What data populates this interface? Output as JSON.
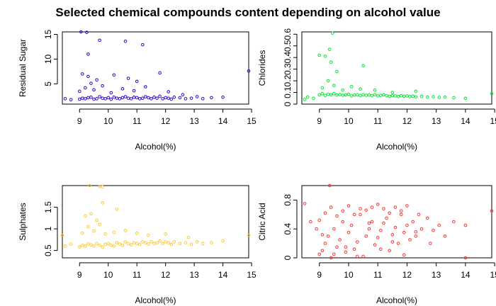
{
  "title": "Selected chemical compounds content depending on alcohol value",
  "chart_data": [
    {
      "type": "scatter",
      "color": "#3300CC",
      "xlabel": "Alcohol(%)",
      "ylabel": "Residual Sugar",
      "xlim": [
        8.4,
        14.9
      ],
      "ylim": [
        0.9,
        15.5
      ],
      "xticks": [
        9,
        10,
        11,
        12,
        13,
        14,
        15
      ],
      "yticks": [
        5,
        10,
        15
      ],
      "x": [
        9.0,
        9.1,
        9.2,
        9.3,
        9.4,
        9.5,
        9.6,
        9.7,
        9.8,
        9.9,
        10.0,
        10.1,
        10.2,
        10.3,
        10.4,
        10.5,
        10.6,
        10.7,
        10.8,
        10.9,
        11.0,
        11.1,
        11.2,
        11.3,
        11.4,
        11.5,
        11.6,
        11.7,
        11.8,
        11.9,
        12.0,
        12.1,
        12.2,
        12.3,
        12.5,
        12.7,
        12.9,
        13.1,
        13.3,
        13.6,
        14.0,
        8.5,
        8.7,
        9.0,
        9.2,
        9.4,
        9.5,
        9.8,
        10.1,
        10.5,
        10.9,
        11.3,
        12.1,
        12.6,
        9.1,
        9.3,
        9.6,
        10.2,
        10.7,
        11.0,
        11.8,
        9.05,
        9.25,
        9.7,
        10.6,
        11.2,
        9.3,
        14.9
      ],
      "y": [
        1.9,
        2.1,
        2.0,
        2.2,
        2.3,
        1.9,
        2.0,
        2.4,
        2.1,
        2.0,
        2.2,
        1.9,
        2.3,
        2.1,
        2.0,
        2.2,
        2.4,
        2.1,
        2.0,
        2.3,
        2.2,
        2.0,
        2.1,
        2.4,
        2.2,
        2.0,
        2.3,
        2.1,
        2.5,
        2.0,
        2.2,
        2.1,
        1.9,
        2.3,
        2.2,
        2.0,
        2.1,
        2.4,
        2.0,
        2.2,
        2.3,
        2.0,
        1.8,
        3.5,
        4.2,
        5.1,
        3.8,
        4.6,
        3.2,
        4.0,
        3.6,
        4.4,
        3.4,
        2.8,
        7.0,
        6.5,
        5.8,
        6.8,
        6.1,
        5.5,
        7.2,
        15.5,
        15.4,
        13.8,
        13.6,
        12.9,
        11.0,
        7.6
      ]
    },
    {
      "type": "scatter",
      "color": "#00E833",
      "xlabel": "Alcohol(%)",
      "ylabel": "Chlorides",
      "xlim": [
        8.4,
        14.9
      ],
      "ylim": [
        0.0,
        0.62
      ],
      "xticks": [
        9,
        10,
        11,
        12,
        13,
        14,
        15
      ],
      "yticks": [
        0.0,
        0.1,
        0.2,
        0.3,
        0.4,
        0.5,
        0.6
      ],
      "x": [
        9.0,
        9.1,
        9.2,
        9.3,
        9.4,
        9.5,
        9.6,
        9.7,
        9.8,
        9.9,
        10.0,
        10.1,
        10.2,
        10.3,
        10.4,
        10.5,
        10.6,
        10.7,
        10.8,
        10.9,
        11.0,
        11.1,
        11.2,
        11.3,
        11.4,
        11.5,
        11.6,
        11.7,
        11.8,
        11.9,
        12.0,
        12.1,
        12.2,
        12.3,
        12.5,
        12.7,
        12.9,
        13.1,
        13.3,
        13.6,
        14.0,
        8.6,
        8.8,
        9.1,
        9.3,
        9.5,
        9.8,
        10.1,
        10.4,
        10.9,
        11.5,
        12.3,
        9.0,
        9.2,
        9.4,
        9.6,
        10.5,
        9.35,
        9.45,
        8.5,
        14.9
      ],
      "y": [
        0.08,
        0.09,
        0.075,
        0.085,
        0.08,
        0.09,
        0.078,
        0.082,
        0.076,
        0.08,
        0.085,
        0.07,
        0.079,
        0.08,
        0.074,
        0.08,
        0.076,
        0.079,
        0.072,
        0.081,
        0.07,
        0.075,
        0.08,
        0.072,
        0.068,
        0.074,
        0.07,
        0.066,
        0.072,
        0.068,
        0.07,
        0.065,
        0.068,
        0.062,
        0.066,
        0.06,
        0.064,
        0.058,
        0.06,
        0.055,
        0.05,
        0.06,
        0.05,
        0.14,
        0.2,
        0.16,
        0.12,
        0.15,
        0.13,
        0.12,
        0.1,
        0.11,
        0.42,
        0.41,
        0.36,
        0.28,
        0.33,
        0.47,
        0.61,
        0.04,
        0.09
      ]
    },
    {
      "type": "scatter",
      "color": "#FFC833",
      "xlabel": "Alcohol(%)",
      "ylabel": "Sulphates",
      "xlim": [
        8.4,
        14.9
      ],
      "ylim": [
        0.33,
        2.0
      ],
      "xticks": [
        9,
        10,
        11,
        12,
        13,
        14,
        15
      ],
      "yticks": [
        0.5,
        1.0,
        1.5
      ],
      "x": [
        9.0,
        9.1,
        9.2,
        9.3,
        9.4,
        9.5,
        9.6,
        9.7,
        9.8,
        9.9,
        10.0,
        10.1,
        10.2,
        10.3,
        10.4,
        10.5,
        10.6,
        10.7,
        10.8,
        10.9,
        11.0,
        11.1,
        11.2,
        11.3,
        11.4,
        11.5,
        11.6,
        11.7,
        11.8,
        11.9,
        12.0,
        12.1,
        12.2,
        12.3,
        12.5,
        12.7,
        12.9,
        13.1,
        13.3,
        13.6,
        14.0,
        8.5,
        8.7,
        9.1,
        9.3,
        9.5,
        9.7,
        9.9,
        10.2,
        10.6,
        11.0,
        11.4,
        12.0,
        12.8,
        9.2,
        9.4,
        9.6,
        9.8,
        10.3,
        9.35,
        9.7,
        9.8,
        8.4,
        14.9
      ],
      "y": [
        0.58,
        0.62,
        0.6,
        0.65,
        0.63,
        0.6,
        0.66,
        0.62,
        0.58,
        0.64,
        0.66,
        0.62,
        0.6,
        0.68,
        0.65,
        0.62,
        0.7,
        0.66,
        0.63,
        0.68,
        0.66,
        0.64,
        0.7,
        0.68,
        0.65,
        0.7,
        0.66,
        0.68,
        0.72,
        0.66,
        0.7,
        0.68,
        0.64,
        0.7,
        0.66,
        0.68,
        0.64,
        0.7,
        0.66,
        0.68,
        0.72,
        0.6,
        0.65,
        0.9,
        1.05,
        0.95,
        1.1,
        0.88,
        0.92,
        0.96,
        0.9,
        0.85,
        0.88,
        0.8,
        1.3,
        1.35,
        1.2,
        1.6,
        1.45,
        2.0,
        1.98,
        1.97,
        0.85,
        0.85
      ]
    },
    {
      "type": "scatter",
      "color": "#FF3333",
      "xlabel": "Alcohol(%)",
      "ylabel": "Citric Acid",
      "xlim": [
        8.4,
        14.9
      ],
      "ylim": [
        0.0,
        1.0
      ],
      "xticks": [
        9,
        10,
        11,
        12,
        13,
        14,
        15
      ],
      "yticks": [
        0.0,
        0.4,
        0.8
      ],
      "x": [
        9.0,
        9.1,
        9.2,
        9.3,
        9.4,
        9.5,
        9.6,
        9.7,
        9.8,
        9.9,
        10.0,
        10.1,
        10.2,
        10.3,
        10.4,
        10.5,
        10.6,
        10.7,
        10.8,
        10.9,
        11.0,
        11.1,
        11.2,
        11.3,
        11.4,
        11.5,
        11.6,
        11.7,
        11.8,
        11.9,
        12.0,
        12.1,
        12.2,
        12.3,
        12.5,
        12.7,
        12.9,
        13.1,
        13.3,
        13.6,
        14.0,
        9.0,
        9.2,
        9.4,
        9.6,
        9.8,
        10.0,
        10.2,
        10.4,
        10.6,
        10.8,
        11.0,
        11.2,
        11.4,
        11.6,
        11.8,
        12.0,
        12.4,
        9.1,
        9.5,
        9.9,
        10.3,
        10.7,
        11.1,
        11.5,
        11.9,
        12.3,
        12.8,
        8.5,
        8.7,
        8.9,
        9.35,
        14.0,
        14.9
      ],
      "y": [
        0.05,
        0.1,
        0.2,
        0.3,
        0.0,
        0.4,
        0.15,
        0.25,
        0.5,
        0.08,
        0.35,
        0.45,
        0.12,
        0.22,
        0.6,
        0.02,
        0.3,
        0.4,
        0.5,
        0.18,
        0.28,
        0.38,
        0.48,
        0.55,
        0.1,
        0.32,
        0.42,
        0.2,
        0.6,
        0.35,
        0.45,
        0.25,
        0.5,
        0.3,
        0.4,
        0.55,
        0.38,
        0.45,
        0.3,
        0.5,
        0.45,
        0.52,
        0.62,
        0.7,
        0.58,
        0.65,
        0.72,
        0.6,
        0.68,
        0.66,
        0.7,
        0.74,
        0.68,
        0.62,
        0.7,
        0.65,
        0.72,
        0.6,
        0.32,
        0.05,
        0.15,
        0.02,
        0.48,
        0.12,
        0.22,
        0.04,
        0.36,
        0.2,
        0.75,
        0.5,
        0.4,
        1.0,
        0.0,
        0.65
      ]
    }
  ]
}
